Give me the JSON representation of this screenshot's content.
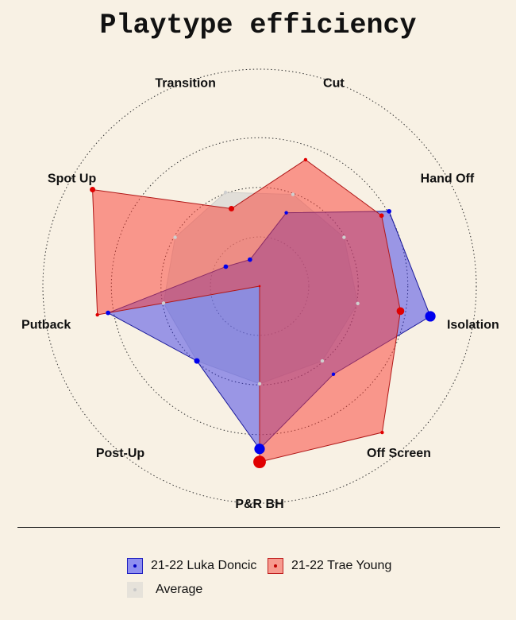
{
  "title": "Playtype efficiency",
  "chart_data": {
    "type": "radar",
    "title": "Playtype efficiency",
    "categories": [
      "P&R BH",
      "Off Screen",
      "Isolation",
      "Hand Off",
      "Cut",
      "Transition",
      "Spot Up",
      "Putback",
      "Post-Up"
    ],
    "range": [
      0,
      1
    ],
    "grid": true,
    "legend_placement": "bottom",
    "series": [
      {
        "name": "Average",
        "color": "#c8c8c8",
        "values": [
          0.45,
          0.45,
          0.46,
          0.45,
          0.45,
          0.46,
          0.45,
          0.45,
          0.45
        ],
        "point_sizes": [
          1,
          1,
          1,
          1,
          1,
          1,
          1,
          1,
          1
        ]
      },
      {
        "name": "21-22 Luka Doncic",
        "color": "#0000ff",
        "values": [
          0.75,
          0.53,
          0.8,
          0.69,
          0.36,
          0.13,
          0.18,
          0.71,
          0.45
        ],
        "point_sizes": [
          3,
          1,
          3,
          1.3,
          1,
          1.3,
          1.3,
          1.3,
          1.6
        ]
      },
      {
        "name": "21-22 Trae Young",
        "color": "#ff0000",
        "values": [
          0.81,
          0.88,
          0.66,
          0.65,
          0.62,
          0.38,
          0.89,
          0.76,
          0.0
        ],
        "point_sizes": [
          3.6,
          1,
          2.2,
          1.3,
          1,
          1.6,
          1.6,
          1,
          0.6
        ]
      }
    ]
  },
  "legend": {
    "luka": "21-22 Luka Doncic",
    "trae": "21-22 Trae Young",
    "average": "Average"
  }
}
